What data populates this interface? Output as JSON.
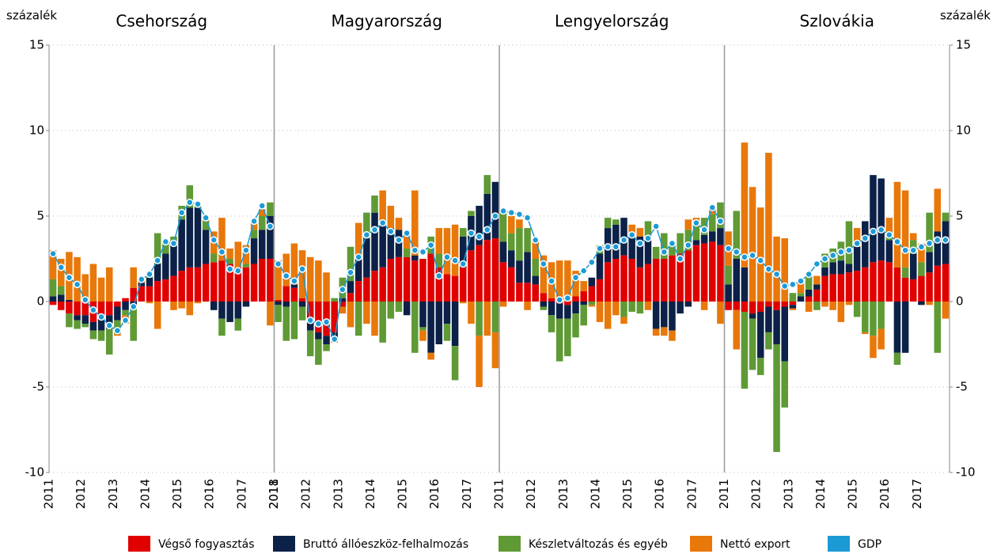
{
  "chart_data": {
    "type": "stacked_bar",
    "ylabel": "százalék",
    "ylim": [
      -10,
      15
    ],
    "yticks": [
      -10,
      -5,
      0,
      5,
      10,
      15
    ],
    "grid": true,
    "legend_position": "bottom",
    "series": [
      {
        "name": "Végső fogyasztás",
        "color": "#e00000",
        "type": "bar"
      },
      {
        "name": "Bruttó állóeszköz-felhalmozás",
        "color": "#0c2148",
        "type": "bar"
      },
      {
        "name": "Készletváltozás és egyéb",
        "color": "#5f9a35",
        "type": "bar"
      },
      {
        "name": "Nettó export",
        "color": "#e8780a",
        "type": "bar"
      },
      {
        "name": "GDP",
        "color": "#1c9ad6",
        "type": "line"
      }
    ],
    "panels": [
      {
        "title": "Csehország",
        "categories": [
          "2011",
          null,
          null,
          null,
          "2012",
          null,
          null,
          null,
          "2013",
          null,
          null,
          null,
          "2014",
          null,
          null,
          null,
          "2015",
          null,
          null,
          null,
          "2016",
          null,
          null,
          null,
          "2017",
          null,
          null,
          null
        ],
        "end_label": "2018",
        "values": [
          [
            -0.2,
            -0.5,
            -0.7,
            -0.8,
            -0.8,
            -1.2,
            -1.0,
            -0.8,
            -0.3,
            0.2,
            0.8,
            0.9,
            0.9,
            1.2,
            1.3,
            1.5,
            1.8,
            2.0,
            2.0,
            2.2,
            2.3,
            2.4,
            2.2,
            2.0,
            2.0,
            2.2,
            2.5,
            2.5
          ],
          [
            0.3,
            0.4,
            0.1,
            -0.3,
            -0.5,
            -0.5,
            -0.7,
            -0.8,
            -0.8,
            -0.5,
            -0.3,
            0.2,
            0.5,
            1.0,
            1.5,
            2.0,
            3.0,
            3.5,
            3.5,
            2.0,
            -0.5,
            -1.0,
            -1.2,
            -1.0,
            -0.3,
            1.5,
            1.7,
            2.5
          ],
          [
            1.0,
            0.5,
            -0.8,
            -0.5,
            -0.2,
            -0.5,
            -0.6,
            -1.5,
            -0.8,
            -0.3,
            -2.0,
            0.0,
            0.3,
            1.8,
            0.8,
            0.3,
            0.8,
            1.3,
            0.3,
            0.5,
            0.5,
            -1.0,
            0.3,
            -0.7,
            0.2,
            0.5,
            0.8,
            0.8
          ],
          [
            1.7,
            1.6,
            2.8,
            2.6,
            1.6,
            2.2,
            1.4,
            2.0,
            -0.1,
            -0.5,
            1.2,
            0.2,
            -0.1,
            -1.6,
            0.0,
            -0.5,
            -0.4,
            -0.8,
            -0.1,
            0.2,
            1.3,
            2.5,
            0.6,
            1.5,
            1.1,
            0.5,
            0.4,
            -1.4
          ],
          [
            2.8,
            2.0,
            1.4,
            1.0,
            0.1,
            -0.5,
            -0.9,
            -1.4,
            -1.7,
            -1.1,
            -0.3,
            1.3,
            1.6,
            2.4,
            3.5,
            3.4,
            5.2,
            5.8,
            5.7,
            4.9,
            3.6,
            2.9,
            1.9,
            1.8,
            3.0,
            4.7,
            5.6,
            4.4
          ]
        ]
      },
      {
        "title": "Magyarország",
        "categories": [
          "2011",
          null,
          null,
          null,
          "2012",
          null,
          null,
          null,
          "2013",
          null,
          null,
          null,
          "2014",
          null,
          null,
          null,
          "2015",
          null,
          null,
          null,
          "2016",
          null,
          null,
          null,
          "2017",
          null,
          null,
          null
        ],
        "values": [
          [
            0.1,
            0.9,
            0.8,
            0.2,
            -1.2,
            -1.8,
            -2.0,
            -1.8,
            -0.3,
            0.5,
            1.2,
            1.4,
            1.8,
            2.0,
            2.5,
            2.6,
            2.6,
            2.4,
            2.5,
            2.8,
            2.0,
            1.6,
            1.5,
            2.0,
            3.0,
            3.3,
            3.6,
            3.7
          ],
          [
            -0.2,
            -0.3,
            0.2,
            -0.3,
            -0.5,
            -0.4,
            -0.5,
            -0.3,
            0.2,
            0.7,
            1.5,
            2.3,
            3.4,
            2.5,
            1.8,
            1.6,
            -0.8,
            0.3,
            -1.5,
            -3.0,
            -2.5,
            -1.3,
            -2.6,
            1.8,
            2.0,
            2.3,
            2.7,
            3.3
          ],
          [
            -1.0,
            -2.0,
            -2.2,
            -0.8,
            -1.5,
            -1.5,
            -0.4,
            0.2,
            1.2,
            2.0,
            -2.0,
            1.5,
            1.0,
            -2.4,
            -1.0,
            -0.6,
            0.5,
            -3.0,
            -0.2,
            1.0,
            0.8,
            -1.0,
            -2.0,
            0.5,
            0.3,
            -2.0,
            1.1,
            -1.8
          ],
          [
            2.3,
            1.9,
            2.4,
            2.8,
            2.6,
            2.4,
            1.7,
            -0.3,
            -0.4,
            -1.5,
            1.9,
            -1.3,
            -2.0,
            2.0,
            1.3,
            0.7,
            1.0,
            3.8,
            -0.6,
            -0.4,
            1.5,
            2.7,
            3.0,
            -0.1,
            -1.3,
            -3.0,
            -2.0,
            -2.1
          ],
          [
            2.2,
            1.5,
            1.2,
            1.9,
            -1.1,
            -1.3,
            -1.2,
            -2.2,
            0.7,
            1.7,
            2.6,
            3.9,
            4.2,
            4.6,
            4.1,
            3.6,
            4.0,
            3.0,
            2.9,
            3.3,
            1.5,
            2.6,
            2.4,
            2.2,
            4.0,
            3.8,
            4.2,
            5.0
          ]
        ]
      },
      {
        "title": "Lengyelország",
        "categories": [
          "2011",
          null,
          null,
          null,
          "2012",
          null,
          null,
          null,
          "2013",
          null,
          null,
          null,
          "2014",
          null,
          null,
          null,
          "2015",
          null,
          null,
          null,
          "2016",
          null,
          null,
          null,
          "2017",
          null,
          null,
          null
        ],
        "values": [
          [
            2.3,
            2.0,
            1.1,
            1.1,
            1.0,
            0.5,
            0.2,
            -0.1,
            -0.2,
            0.3,
            0.6,
            0.9,
            1.3,
            2.3,
            2.5,
            2.7,
            2.5,
            2.0,
            2.2,
            2.5,
            2.5,
            2.7,
            2.8,
            3.0,
            3.3,
            3.4,
            3.5,
            3.3
          ],
          [
            1.2,
            1.0,
            1.3,
            1.8,
            0.5,
            -0.3,
            -0.8,
            -0.9,
            -0.8,
            -0.7,
            -0.2,
            0.5,
            1.5,
            2.0,
            2.0,
            2.2,
            1.5,
            1.8,
            1.5,
            -1.6,
            -1.5,
            -1.7,
            -0.7,
            -0.3,
            0.3,
            0.5,
            0.6,
            1.0
          ],
          [
            1.8,
            1.0,
            1.9,
            1.4,
            1.0,
            -0.2,
            -1.0,
            -2.5,
            -2.2,
            -1.4,
            -1.2,
            -0.2,
            0.5,
            0.6,
            0.3,
            -0.9,
            -0.6,
            -0.7,
            1.0,
            0.7,
            1.5,
            0.8,
            1.2,
            1.2,
            1.0,
            1.0,
            1.0,
            1.5
          ],
          [
            -0.3,
            1.0,
            0.5,
            -0.5,
            1.0,
            2.2,
            2.1,
            2.4,
            2.4,
            1.5,
            0.6,
            -0.1,
            -1.2,
            -1.6,
            -0.8,
            -0.4,
            0.5,
            0.5,
            -0.5,
            -0.4,
            -0.5,
            -0.6,
            0.0,
            0.6,
            0.3,
            -0.5,
            0.5,
            -1.3
          ],
          [
            5.3,
            5.2,
            5.1,
            4.9,
            3.6,
            2.2,
            1.2,
            0.1,
            0.2,
            1.4,
            1.8,
            2.3,
            3.1,
            3.2,
            3.2,
            3.6,
            3.9,
            3.4,
            3.7,
            4.4,
            2.9,
            3.4,
            2.5,
            3.3,
            4.6,
            4.2,
            5.5,
            4.7
          ]
        ]
      },
      {
        "title": "Szlovákia",
        "categories": [
          "2011",
          null,
          null,
          null,
          "2012",
          null,
          null,
          null,
          "2013",
          null,
          null,
          null,
          "2014",
          null,
          null,
          null,
          "2015",
          null,
          null,
          null,
          "2016",
          null,
          null,
          null,
          "2017",
          null,
          null,
          null
        ],
        "values": [
          [
            -0.5,
            -0.5,
            -0.6,
            -0.7,
            -0.6,
            -0.3,
            -0.5,
            -0.3,
            -0.2,
            0.0,
            0.3,
            0.7,
            1.5,
            1.6,
            1.6,
            1.7,
            1.8,
            2.0,
            2.3,
            2.4,
            2.3,
            2.0,
            1.4,
            1.3,
            1.5,
            1.7,
            2.1,
            2.2
          ],
          [
            1.0,
            2.5,
            2.0,
            -0.3,
            -2.7,
            -1.5,
            -2.0,
            -3.2,
            -0.2,
            0.3,
            0.4,
            0.3,
            0.5,
            0.7,
            0.8,
            0.5,
            1.4,
            2.7,
            5.1,
            4.8,
            1.3,
            -3.0,
            -3.0,
            1.5,
            -0.2,
            1.2,
            2.0,
            2.5
          ],
          [
            1.1,
            2.8,
            -4.5,
            -3.0,
            -1.0,
            -1.0,
            -6.3,
            -2.7,
            0.5,
            0.2,
            1.0,
            -0.5,
            0.8,
            0.8,
            1.1,
            2.5,
            -0.9,
            -1.8,
            -2.0,
            -1.6,
            0.5,
            -0.7,
            0.6,
            0.8,
            0.8,
            2.3,
            -3.0,
            0.5
          ],
          [
            2.0,
            -2.3,
            7.3,
            6.7,
            5.5,
            8.7,
            3.8,
            3.7,
            -0.1,
            0.6,
            -0.6,
            0.5,
            -0.3,
            -0.5,
            -1.2,
            -0.2,
            1.1,
            -0.1,
            -1.3,
            -1.2,
            0.8,
            5.0,
            4.5,
            0.4,
            1.1,
            -0.2,
            2.5,
            -1.0
          ],
          [
            3.1,
            2.9,
            2.6,
            2.7,
            2.4,
            1.9,
            1.6,
            0.9,
            1.0,
            1.2,
            1.6,
            2.2,
            2.5,
            2.7,
            2.9,
            3.0,
            3.4,
            3.7,
            4.1,
            4.2,
            3.9,
            3.5,
            3.0,
            3.0,
            3.2,
            3.4,
            3.6,
            3.6
          ]
        ]
      }
    ]
  }
}
